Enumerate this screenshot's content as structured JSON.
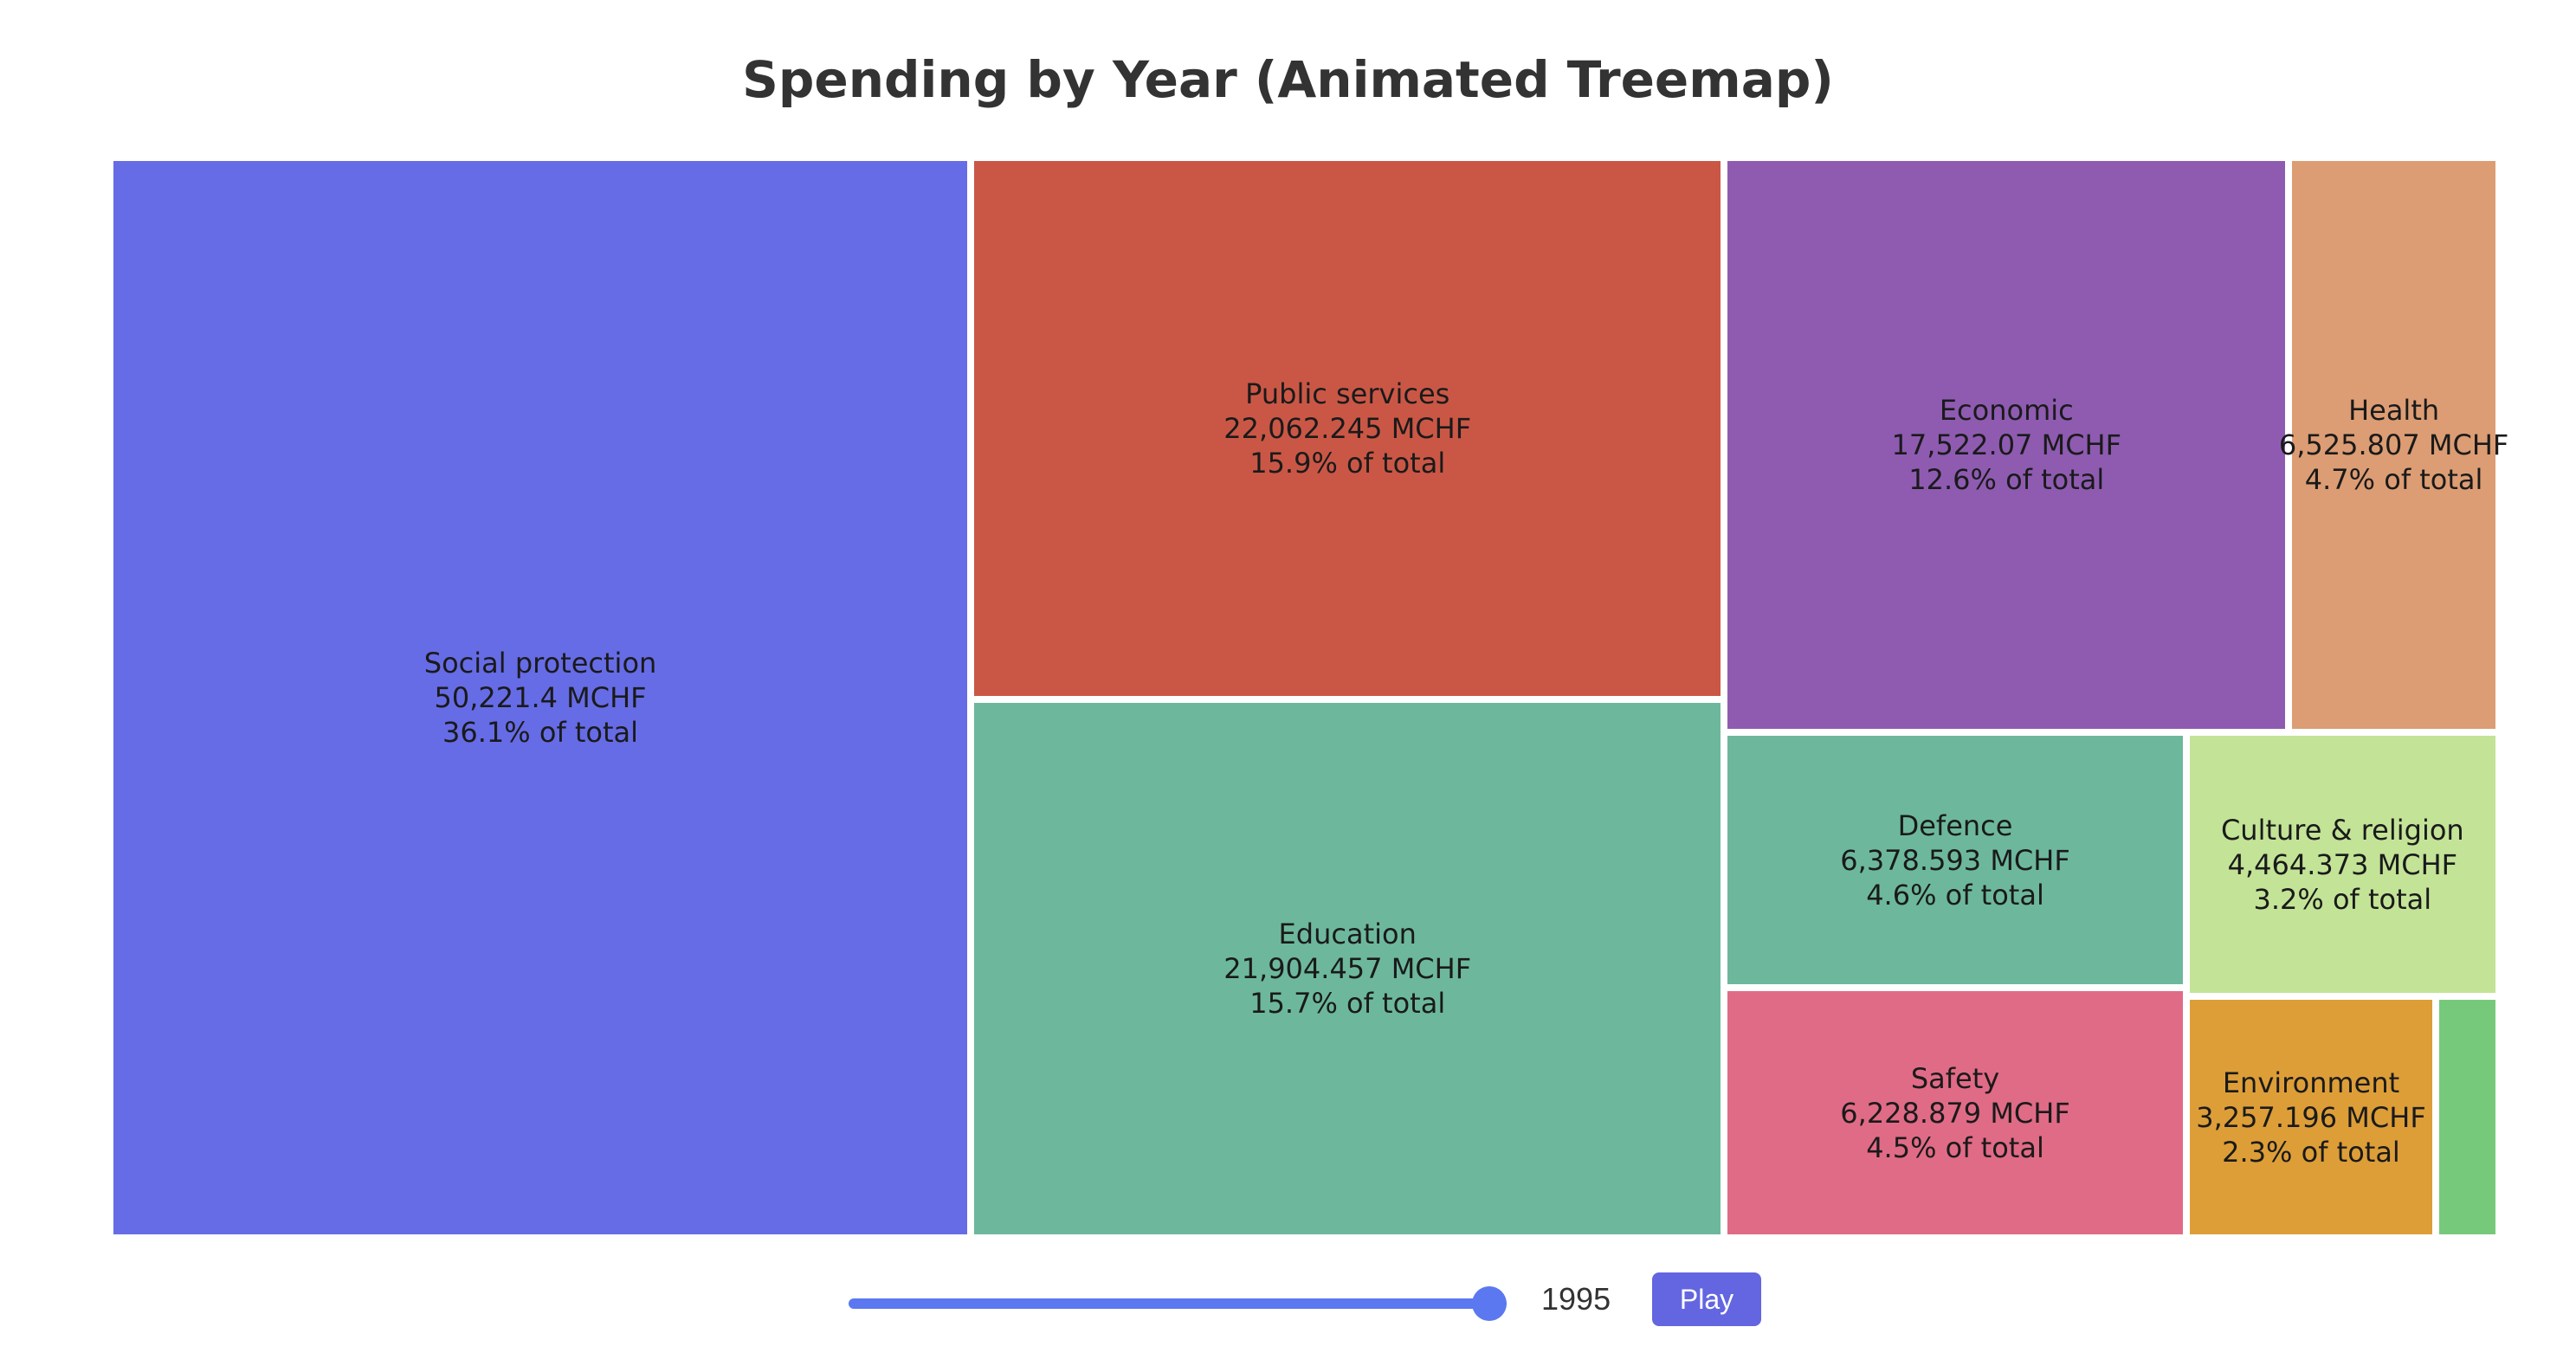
{
  "chart_data": {
    "type": "treemap",
    "title": "Spending by Year (Animated Treemap)",
    "unit": "MCHF",
    "year": "1995",
    "items": [
      {
        "name": "Social protection",
        "value": 50221.4,
        "value_label": "50,221.4 MCHF",
        "share_label": "36.1% of total",
        "color": "#666ce6"
      },
      {
        "name": "Public services",
        "value": 22062.245,
        "value_label": "22,062.245 MCHF",
        "share_label": "15.9% of total",
        "color": "#ca5746"
      },
      {
        "name": "Education",
        "value": 21904.457,
        "value_label": "21,904.457 MCHF",
        "share_label": "15.7% of total",
        "color": "#6db89c"
      },
      {
        "name": "Economic",
        "value": 17522.07,
        "value_label": "17,522.07 MCHF",
        "share_label": "12.6% of total",
        "color": "#8e5bb1"
      },
      {
        "name": "Health",
        "value": 6525.807,
        "value_label": "6,525.807 MCHF",
        "share_label": "4.7% of total",
        "color": "#dc9d74"
      },
      {
        "name": "Defence",
        "value": 6378.593,
        "value_label": "6,378.593 MCHF",
        "share_label": "4.6% of total",
        "color": "#6db89c"
      },
      {
        "name": "Safety",
        "value": 6228.879,
        "value_label": "6,228.879 MCHF",
        "share_label": "4.5% of total",
        "color": "#e06b86"
      },
      {
        "name": "Culture & religion",
        "value": 4464.373,
        "value_label": "4,464.373 MCHF",
        "share_label": "3.2% of total",
        "color": "#c3e397"
      },
      {
        "name": "Environment",
        "value": 3257.196,
        "value_label": "3,257.196 MCHF",
        "share_label": "2.3% of total",
        "color": "#dd9e38"
      },
      {
        "name": "",
        "value": 820,
        "value_label": "",
        "share_label": "",
        "color": "#76c97b"
      }
    ]
  },
  "controls": {
    "year_label": "1995",
    "play_label": "Play",
    "slider_min": "1990",
    "slider_max": "1995",
    "slider_value": "1995",
    "slider_color": "#5b78f0",
    "button_color": "#6366e0"
  }
}
